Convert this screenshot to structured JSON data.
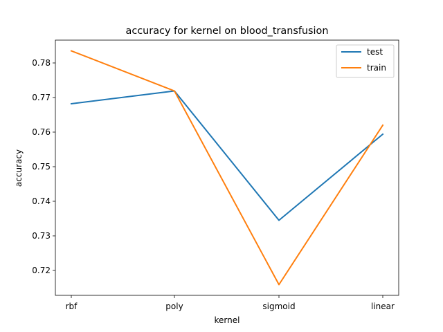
{
  "chart_data": {
    "type": "line",
    "title": "accuracy for kernel on  blood_transfusion",
    "xlabel": "kernel",
    "ylabel": "accuracy",
    "categories": [
      "rbf",
      "poly",
      "sigmoid",
      "linear"
    ],
    "series": [
      {
        "name": "test",
        "color": "#1f77b4",
        "values": [
          0.7682,
          0.7719,
          0.7345,
          0.7594
        ]
      },
      {
        "name": "train",
        "color": "#ff7f0e",
        "values": [
          0.7835,
          0.7719,
          0.7159,
          0.762
        ]
      }
    ],
    "ylim": [
      0.7128,
      0.7866
    ],
    "yticks": [
      0.72,
      0.73,
      0.74,
      0.75,
      0.76,
      0.77,
      0.78
    ],
    "ytick_labels": [
      "0.72",
      "0.73",
      "0.74",
      "0.75",
      "0.76",
      "0.77",
      "0.78"
    ],
    "grid": false,
    "legend_position": "top-right"
  }
}
